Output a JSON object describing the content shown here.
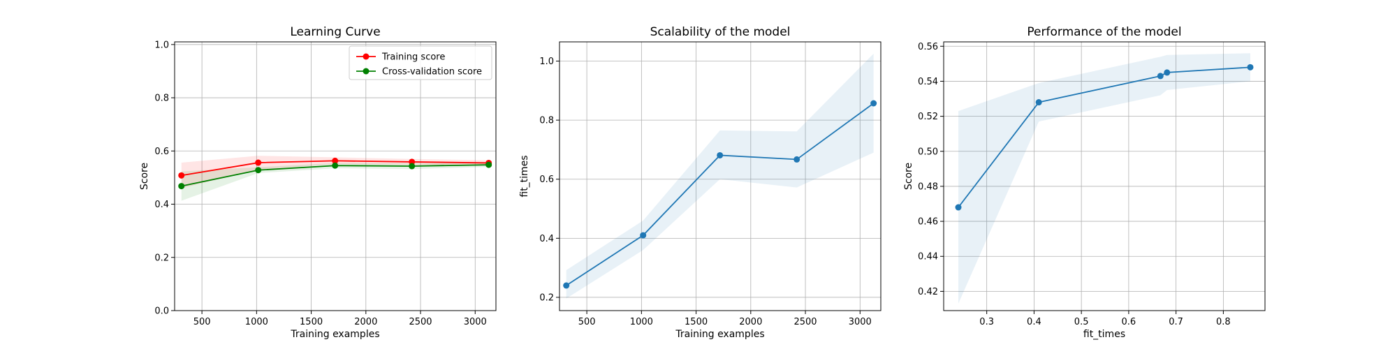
{
  "chart_data": [
    {
      "type": "line",
      "title": "Learning Curve",
      "xlabel": "Training examples",
      "ylabel": "Score",
      "xlim": [
        250,
        3190
      ],
      "ylim": [
        0.0,
        1.01
      ],
      "xticks": [
        500,
        1000,
        1500,
        2000,
        2500,
        3000
      ],
      "yticks": [
        0.0,
        0.2,
        0.4,
        0.6,
        0.8,
        1.0
      ],
      "xtick_labels": [
        "500",
        "1000",
        "1500",
        "2000",
        "2500",
        "3000"
      ],
      "ytick_labels": [
        "0.0",
        "0.2",
        "0.4",
        "0.6",
        "0.8",
        "1.0"
      ],
      "grid": true,
      "legend_position": "top-right",
      "x": [
        312,
        1015,
        1718,
        2421,
        3124
      ],
      "series": [
        {
          "name": "Training score",
          "color": "#ff0000",
          "values": [
            0.508,
            0.556,
            0.563,
            0.559,
            0.555
          ],
          "band_lower": [
            0.46,
            0.53,
            0.55,
            0.548,
            0.545
          ],
          "band_upper": [
            0.556,
            0.582,
            0.576,
            0.57,
            0.565
          ]
        },
        {
          "name": "Cross-validation score",
          "color": "#008000",
          "values": [
            0.468,
            0.528,
            0.545,
            0.543,
            0.548
          ],
          "band_lower": [
            0.413,
            0.517,
            0.535,
            0.532,
            0.54
          ],
          "band_upper": [
            0.523,
            0.539,
            0.555,
            0.554,
            0.556
          ]
        }
      ]
    },
    {
      "type": "line",
      "title": "Scalability of the model",
      "xlabel": "Training examples",
      "ylabel": "fit_times",
      "xlim": [
        250,
        3190
      ],
      "ylim": [
        0.155,
        1.065
      ],
      "xticks": [
        500,
        1000,
        1500,
        2000,
        2500,
        3000
      ],
      "yticks": [
        0.2,
        0.4,
        0.6,
        0.8,
        1.0
      ],
      "xtick_labels": [
        "500",
        "1000",
        "1500",
        "2000",
        "2500",
        "3000"
      ],
      "ytick_labels": [
        "0.2",
        "0.4",
        "0.6",
        "0.8",
        "1.0"
      ],
      "grid": true,
      "x": [
        312,
        1015,
        1718,
        2421,
        3124
      ],
      "series": [
        {
          "color": "#1f77b4",
          "values": [
            0.24,
            0.41,
            0.681,
            0.667,
            0.857
          ],
          "band_lower": [
            0.196,
            0.36,
            0.6,
            0.572,
            0.69
          ],
          "band_upper": [
            0.292,
            0.46,
            0.765,
            0.762,
            1.025
          ]
        }
      ]
    },
    {
      "type": "line",
      "title": "Performance of the model",
      "xlabel": "fit_times",
      "ylabel": "Score",
      "xlim": [
        0.209,
        0.888
      ],
      "ylim": [
        0.409,
        0.5625
      ],
      "xticks": [
        0.3,
        0.4,
        0.5,
        0.6,
        0.7,
        0.8
      ],
      "yticks": [
        0.42,
        0.44,
        0.46,
        0.48,
        0.5,
        0.52,
        0.54,
        0.56
      ],
      "xtick_labels": [
        "0.3",
        "0.4",
        "0.5",
        "0.6",
        "0.7",
        "0.8"
      ],
      "ytick_labels": [
        "0.42",
        "0.44",
        "0.46",
        "0.48",
        "0.50",
        "0.52",
        "0.54",
        "0.56"
      ],
      "grid": true,
      "x": [
        0.24,
        0.41,
        0.667,
        0.681,
        0.857
      ],
      "series": [
        {
          "color": "#1f77b4",
          "values": [
            0.468,
            0.528,
            0.543,
            0.545,
            0.548
          ],
          "band_lower": [
            0.413,
            0.517,
            0.532,
            0.535,
            0.54
          ],
          "band_upper": [
            0.523,
            0.539,
            0.554,
            0.555,
            0.556
          ]
        }
      ]
    }
  ]
}
